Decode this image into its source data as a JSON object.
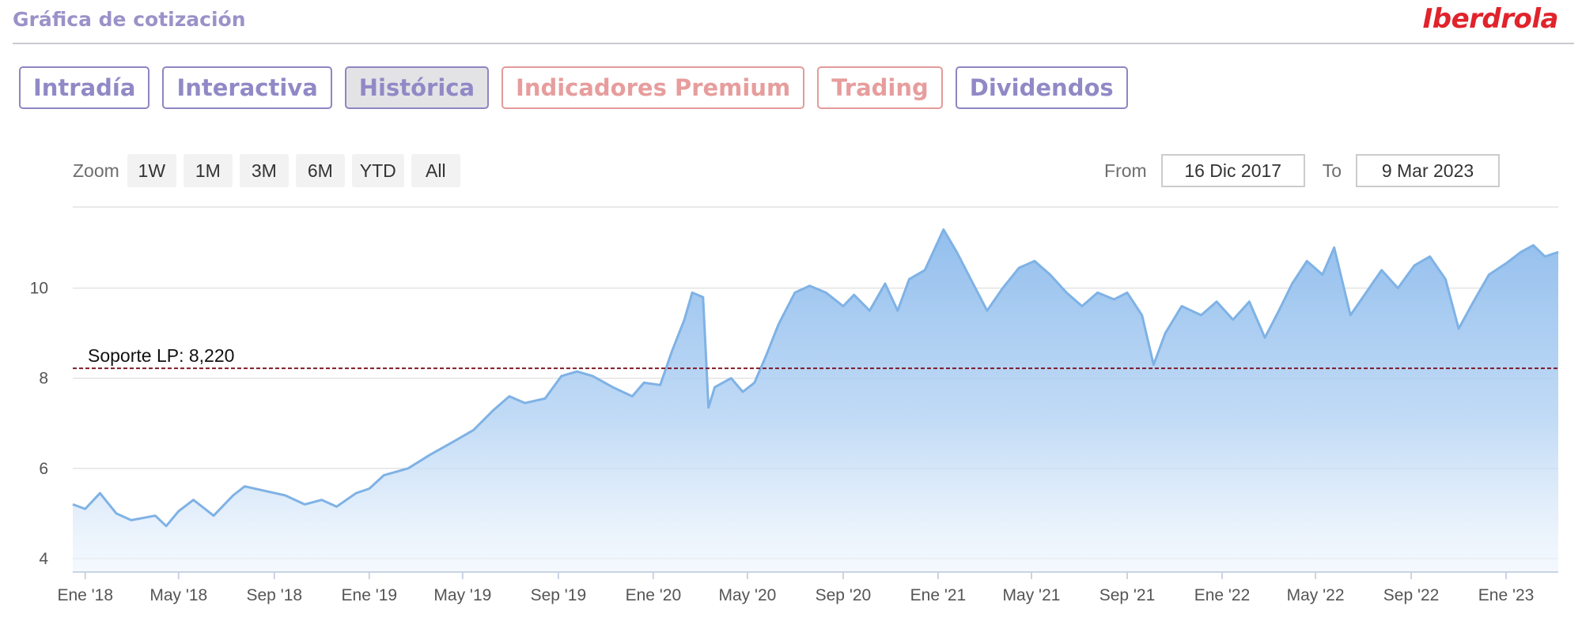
{
  "header": {
    "title": "Gráfica de cotización",
    "brand": "Iberdrola"
  },
  "tabs": [
    {
      "label": "Intradía",
      "style": "normal"
    },
    {
      "label": "Interactiva",
      "style": "normal"
    },
    {
      "label": "Histórica",
      "style": "active"
    },
    {
      "label": "Indicadores Premium",
      "style": "premium"
    },
    {
      "label": "Trading",
      "style": "premium"
    },
    {
      "label": "Dividendos",
      "style": "normal"
    }
  ],
  "zoom": {
    "label": "Zoom",
    "buttons": [
      "1W",
      "1M",
      "3M",
      "6M",
      "YTD",
      "All"
    ]
  },
  "range": {
    "from_label": "From",
    "from_value": "16 Dic 2017",
    "to_label": "To",
    "to_value": "9 Mar 2023"
  },
  "colors": {
    "accent": "#9189c6",
    "premium": "#e79d9d",
    "brand": "#e1232b",
    "area_line": "#7fb2e5",
    "support_line": "#7a0f1c"
  },
  "chart_data": {
    "type": "area",
    "title": "",
    "xlabel": "",
    "ylabel": "",
    "ylim": [
      3.7,
      11.8
    ],
    "y_ticks": [
      4,
      6,
      8,
      10
    ],
    "x_ticks": [
      "Ene '18",
      "May '18",
      "Sep '18",
      "Ene '19",
      "May '19",
      "Sep '19",
      "Ene '20",
      "May '20",
      "Sep '20",
      "Ene '21",
      "May '21",
      "Sep '21",
      "Ene '22",
      "May '22",
      "Sep '22",
      "Ene '23"
    ],
    "grid": true,
    "legend": "none",
    "support_line": {
      "label": "Soporte LP: 8,220",
      "value": 8.22
    },
    "series": [
      {
        "points": [
          [
            "2017-12-16",
            5.2
          ],
          [
            "2018-01-01",
            5.1
          ],
          [
            "2018-01-20",
            5.45
          ],
          [
            "2018-02-10",
            5.0
          ],
          [
            "2018-03-01",
            4.85
          ],
          [
            "2018-04-01",
            4.95
          ],
          [
            "2018-04-15",
            4.72
          ],
          [
            "2018-05-01",
            5.05
          ],
          [
            "2018-05-20",
            5.3
          ],
          [
            "2018-06-15",
            4.95
          ],
          [
            "2018-07-10",
            5.4
          ],
          [
            "2018-07-25",
            5.6
          ],
          [
            "2018-08-20",
            5.5
          ],
          [
            "2018-09-15",
            5.4
          ],
          [
            "2018-10-10",
            5.2
          ],
          [
            "2018-11-01",
            5.3
          ],
          [
            "2018-11-20",
            5.15
          ],
          [
            "2018-12-15",
            5.45
          ],
          [
            "2019-01-01",
            5.55
          ],
          [
            "2019-01-20",
            5.85
          ],
          [
            "2019-02-20",
            6.0
          ],
          [
            "2019-03-20",
            6.3
          ],
          [
            "2019-04-20",
            6.6
          ],
          [
            "2019-05-15",
            6.85
          ],
          [
            "2019-06-10",
            7.3
          ],
          [
            "2019-06-30",
            7.6
          ],
          [
            "2019-07-20",
            7.45
          ],
          [
            "2019-08-15",
            7.55
          ],
          [
            "2019-09-05",
            8.05
          ],
          [
            "2019-09-25",
            8.15
          ],
          [
            "2019-10-15",
            8.05
          ],
          [
            "2019-11-10",
            7.8
          ],
          [
            "2019-12-05",
            7.6
          ],
          [
            "2019-12-20",
            7.9
          ],
          [
            "2020-01-10",
            7.85
          ],
          [
            "2020-01-25",
            8.6
          ],
          [
            "2020-02-10",
            9.3
          ],
          [
            "2020-02-20",
            9.9
          ],
          [
            "2020-03-05",
            9.8
          ],
          [
            "2020-03-12",
            7.35
          ],
          [
            "2020-03-20",
            7.8
          ],
          [
            "2020-04-10",
            8.0
          ],
          [
            "2020-04-25",
            7.7
          ],
          [
            "2020-05-10",
            7.9
          ],
          [
            "2020-05-25",
            8.5
          ],
          [
            "2020-06-10",
            9.2
          ],
          [
            "2020-07-01",
            9.9
          ],
          [
            "2020-07-20",
            10.05
          ],
          [
            "2020-08-10",
            9.9
          ],
          [
            "2020-09-01",
            9.6
          ],
          [
            "2020-09-15",
            9.85
          ],
          [
            "2020-10-05",
            9.5
          ],
          [
            "2020-10-25",
            10.1
          ],
          [
            "2020-11-10",
            9.5
          ],
          [
            "2020-11-25",
            10.2
          ],
          [
            "2020-12-15",
            10.4
          ],
          [
            "2021-01-08",
            11.3
          ],
          [
            "2021-01-25",
            10.8
          ],
          [
            "2021-02-15",
            10.1
          ],
          [
            "2021-03-05",
            9.5
          ],
          [
            "2021-03-25",
            10.0
          ],
          [
            "2021-04-15",
            10.45
          ],
          [
            "2021-05-05",
            10.6
          ],
          [
            "2021-05-25",
            10.3
          ],
          [
            "2021-06-15",
            9.9
          ],
          [
            "2021-07-05",
            9.6
          ],
          [
            "2021-07-25",
            9.9
          ],
          [
            "2021-08-15",
            9.75
          ],
          [
            "2021-09-01",
            9.9
          ],
          [
            "2021-09-20",
            9.4
          ],
          [
            "2021-10-05",
            8.3
          ],
          [
            "2021-10-20",
            9.0
          ],
          [
            "2021-11-10",
            9.6
          ],
          [
            "2021-12-05",
            9.4
          ],
          [
            "2021-12-25",
            9.7
          ],
          [
            "2022-01-15",
            9.3
          ],
          [
            "2022-02-05",
            9.7
          ],
          [
            "2022-02-25",
            8.9
          ],
          [
            "2022-03-15",
            9.5
          ],
          [
            "2022-04-01",
            10.1
          ],
          [
            "2022-04-20",
            10.6
          ],
          [
            "2022-05-10",
            10.3
          ],
          [
            "2022-05-25",
            10.9
          ],
          [
            "2022-06-15",
            9.4
          ],
          [
            "2022-07-05",
            9.9
          ],
          [
            "2022-07-25",
            10.4
          ],
          [
            "2022-08-15",
            10.0
          ],
          [
            "2022-09-05",
            10.5
          ],
          [
            "2022-09-25",
            10.7
          ],
          [
            "2022-10-15",
            10.2
          ],
          [
            "2022-11-01",
            9.1
          ],
          [
            "2022-11-20",
            9.7
          ],
          [
            "2022-12-10",
            10.3
          ],
          [
            "2023-01-01",
            10.55
          ],
          [
            "2023-01-20",
            10.8
          ],
          [
            "2023-02-05",
            10.95
          ],
          [
            "2023-02-20",
            10.7
          ],
          [
            "2023-03-09",
            10.8
          ]
        ]
      }
    ]
  }
}
